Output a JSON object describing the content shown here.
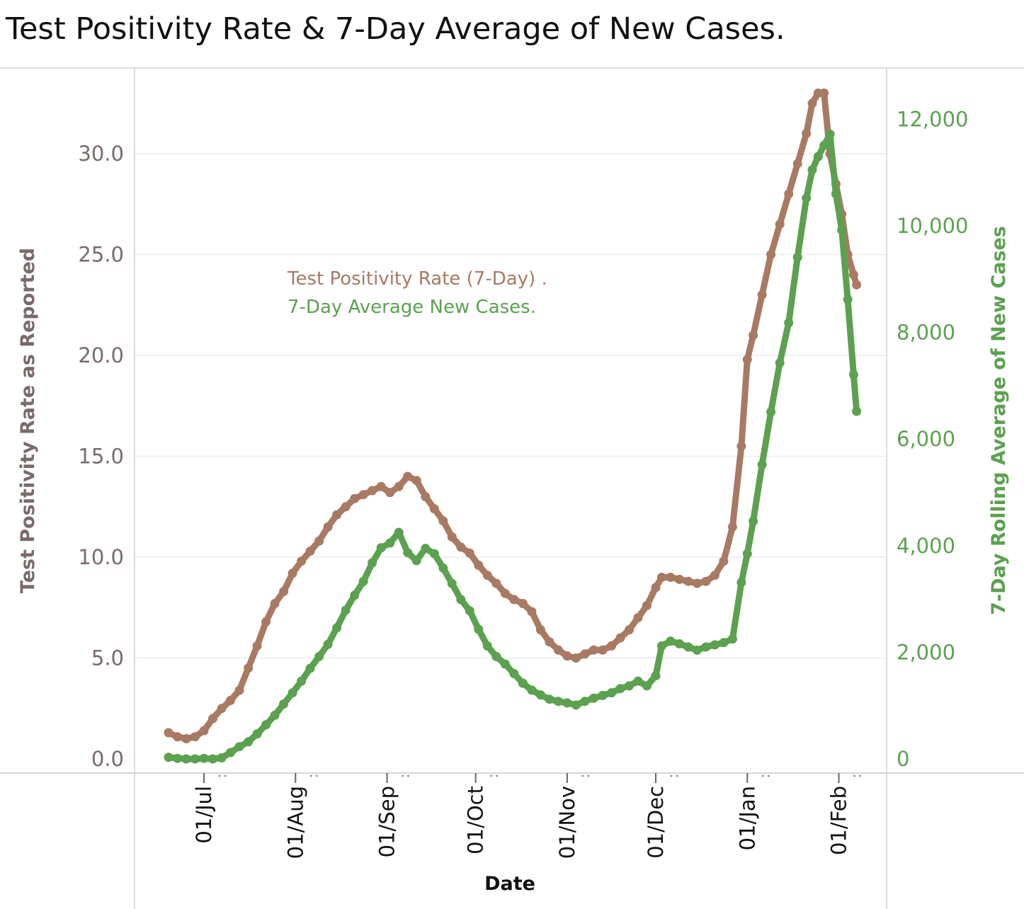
{
  "chart_data": {
    "type": "line",
    "title": "Test Positivity Rate & 7-Day Average of New Cases.",
    "xlabel": "Date",
    "x_ticks": [
      "01/Jul",
      "01/Aug",
      "01/Sep",
      "01/Oct",
      "01/Nov",
      "01/Dec",
      "01/Jan",
      "01/Feb"
    ],
    "y_left": {
      "label": "Test Positivity Rate as Reported",
      "ticks": [
        "0.0",
        "5.0",
        "10.0",
        "15.0",
        "20.0",
        "25.0",
        "30.0"
      ],
      "range": [
        0,
        35
      ],
      "color": "#7a6a6a"
    },
    "y_right": {
      "label": "7-Day Rolling  Average of New Cases",
      "ticks": [
        "0",
        "2,000",
        "4,000",
        "6,000",
        "8,000",
        "10,000",
        "12,000"
      ],
      "range": [
        0,
        13000
      ],
      "color": "#5ba14f"
    },
    "grid": true,
    "legend_position": "upper-left, inside plot",
    "series": [
      {
        "name": "Test Positivity Rate  (7-Day) .",
        "axis": "left",
        "color": "#a87a63",
        "points": [
          [
            "2020-06-19",
            1.3
          ],
          [
            "2020-06-22",
            1.1
          ],
          [
            "2020-06-25",
            1.0
          ],
          [
            "2020-06-28",
            1.1
          ],
          [
            "2020-07-01",
            1.4
          ],
          [
            "2020-07-04",
            2.0
          ],
          [
            "2020-07-07",
            2.5
          ],
          [
            "2020-07-10",
            2.9
          ],
          [
            "2020-07-13",
            3.4
          ],
          [
            "2020-07-16",
            4.5
          ],
          [
            "2020-07-19",
            5.6
          ],
          [
            "2020-07-22",
            6.8
          ],
          [
            "2020-07-25",
            7.7
          ],
          [
            "2020-07-28",
            8.3
          ],
          [
            "2020-07-31",
            9.2
          ],
          [
            "2020-08-03",
            9.8
          ],
          [
            "2020-08-06",
            10.3
          ],
          [
            "2020-08-09",
            10.8
          ],
          [
            "2020-08-12",
            11.5
          ],
          [
            "2020-08-15",
            12.1
          ],
          [
            "2020-08-18",
            12.5
          ],
          [
            "2020-08-21",
            12.9
          ],
          [
            "2020-08-24",
            13.1
          ],
          [
            "2020-08-27",
            13.3
          ],
          [
            "2020-08-30",
            13.5
          ],
          [
            "2020-09-02",
            13.2
          ],
          [
            "2020-09-05",
            13.5
          ],
          [
            "2020-09-08",
            14.0
          ],
          [
            "2020-09-11",
            13.8
          ],
          [
            "2020-09-14",
            13.0
          ],
          [
            "2020-09-17",
            12.4
          ],
          [
            "2020-09-20",
            11.8
          ],
          [
            "2020-09-23",
            11.0
          ],
          [
            "2020-09-26",
            10.5
          ],
          [
            "2020-09-29",
            10.2
          ],
          [
            "2020-10-02",
            9.6
          ],
          [
            "2020-10-05",
            9.1
          ],
          [
            "2020-10-08",
            8.7
          ],
          [
            "2020-10-11",
            8.2
          ],
          [
            "2020-10-14",
            7.9
          ],
          [
            "2020-10-17",
            7.7
          ],
          [
            "2020-10-20",
            7.3
          ],
          [
            "2020-10-23",
            6.4
          ],
          [
            "2020-10-26",
            5.8
          ],
          [
            "2020-10-29",
            5.4
          ],
          [
            "2020-11-01",
            5.1
          ],
          [
            "2020-11-04",
            5.0
          ],
          [
            "2020-11-07",
            5.2
          ],
          [
            "2020-11-10",
            5.4
          ],
          [
            "2020-11-13",
            5.4
          ],
          [
            "2020-11-16",
            5.6
          ],
          [
            "2020-11-19",
            6.0
          ],
          [
            "2020-11-22",
            6.4
          ],
          [
            "2020-11-25",
            7.0
          ],
          [
            "2020-11-28",
            7.6
          ],
          [
            "2020-12-01",
            8.5
          ],
          [
            "2020-12-03",
            9.0
          ],
          [
            "2020-12-06",
            9.0
          ],
          [
            "2020-12-09",
            8.9
          ],
          [
            "2020-12-12",
            8.8
          ],
          [
            "2020-12-15",
            8.7
          ],
          [
            "2020-12-18",
            8.8
          ],
          [
            "2020-12-21",
            9.1
          ],
          [
            "2020-12-24",
            9.8
          ],
          [
            "2020-12-27",
            11.5
          ],
          [
            "2020-12-30",
            15.5
          ],
          [
            "2021-01-01",
            19.8
          ],
          [
            "2021-01-03",
            21.0
          ],
          [
            "2021-01-06",
            23.0
          ],
          [
            "2021-01-09",
            25.0
          ],
          [
            "2021-01-12",
            26.5
          ],
          [
            "2021-01-15",
            28.0
          ],
          [
            "2021-01-18",
            29.5
          ],
          [
            "2021-01-21",
            31.0
          ],
          [
            "2021-01-23",
            32.5
          ],
          [
            "2021-01-25",
            33.0
          ],
          [
            "2021-01-27",
            33.0
          ],
          [
            "2021-01-29",
            30.0
          ],
          [
            "2021-01-31",
            28.5
          ],
          [
            "2021-02-02",
            27.0
          ],
          [
            "2021-02-04",
            25.0
          ],
          [
            "2021-02-06",
            24.0
          ],
          [
            "2021-02-07",
            23.5
          ]
        ]
      },
      {
        "name": "7-Day Average New Cases.",
        "axis": "right",
        "color": "#5ba14f",
        "points": [
          [
            "2020-06-19",
            30
          ],
          [
            "2020-06-22",
            10
          ],
          [
            "2020-06-25",
            0
          ],
          [
            "2020-06-28",
            0
          ],
          [
            "2020-07-01",
            10
          ],
          [
            "2020-07-04",
            0
          ],
          [
            "2020-07-07",
            20
          ],
          [
            "2020-07-10",
            120
          ],
          [
            "2020-07-13",
            230
          ],
          [
            "2020-07-16",
            320
          ],
          [
            "2020-07-19",
            470
          ],
          [
            "2020-07-22",
            640
          ],
          [
            "2020-07-25",
            820
          ],
          [
            "2020-07-28",
            1030
          ],
          [
            "2020-07-31",
            1240
          ],
          [
            "2020-08-03",
            1460
          ],
          [
            "2020-08-06",
            1700
          ],
          [
            "2020-08-09",
            1920
          ],
          [
            "2020-08-12",
            2150
          ],
          [
            "2020-08-15",
            2460
          ],
          [
            "2020-08-18",
            2790
          ],
          [
            "2020-08-21",
            3070
          ],
          [
            "2020-08-24",
            3330
          ],
          [
            "2020-08-27",
            3680
          ],
          [
            "2020-08-30",
            3960
          ],
          [
            "2020-09-02",
            4050
          ],
          [
            "2020-09-05",
            4250
          ],
          [
            "2020-09-08",
            3870
          ],
          [
            "2020-09-11",
            3720
          ],
          [
            "2020-09-14",
            3950
          ],
          [
            "2020-09-17",
            3850
          ],
          [
            "2020-09-20",
            3580
          ],
          [
            "2020-09-23",
            3290
          ],
          [
            "2020-09-26",
            2990
          ],
          [
            "2020-09-29",
            2780
          ],
          [
            "2020-10-02",
            2430
          ],
          [
            "2020-10-05",
            2120
          ],
          [
            "2020-10-08",
            1920
          ],
          [
            "2020-10-11",
            1780
          ],
          [
            "2020-10-14",
            1600
          ],
          [
            "2020-10-17",
            1420
          ],
          [
            "2020-10-20",
            1290
          ],
          [
            "2020-10-23",
            1200
          ],
          [
            "2020-10-26",
            1120
          ],
          [
            "2020-10-29",
            1080
          ],
          [
            "2020-11-01",
            1050
          ],
          [
            "2020-11-04",
            1010
          ],
          [
            "2020-11-07",
            1080
          ],
          [
            "2020-11-10",
            1140
          ],
          [
            "2020-11-13",
            1190
          ],
          [
            "2020-11-16",
            1240
          ],
          [
            "2020-11-19",
            1320
          ],
          [
            "2020-11-22",
            1370
          ],
          [
            "2020-11-25",
            1460
          ],
          [
            "2020-11-28",
            1370
          ],
          [
            "2020-12-01",
            1560
          ],
          [
            "2020-12-03",
            2120
          ],
          [
            "2020-12-06",
            2210
          ],
          [
            "2020-12-09",
            2160
          ],
          [
            "2020-12-12",
            2100
          ],
          [
            "2020-12-15",
            2040
          ],
          [
            "2020-12-18",
            2100
          ],
          [
            "2020-12-21",
            2140
          ],
          [
            "2020-12-24",
            2180
          ],
          [
            "2020-12-27",
            2250
          ],
          [
            "2020-12-30",
            3310
          ],
          [
            "2021-01-01",
            3850
          ],
          [
            "2021-01-03",
            4460
          ],
          [
            "2021-01-06",
            5520
          ],
          [
            "2021-01-09",
            6510
          ],
          [
            "2021-01-12",
            7430
          ],
          [
            "2021-01-15",
            8180
          ],
          [
            "2021-01-18",
            9410
          ],
          [
            "2021-01-21",
            10520
          ],
          [
            "2021-01-23",
            11050
          ],
          [
            "2021-01-25",
            11300
          ],
          [
            "2021-01-27",
            11510
          ],
          [
            "2021-01-29",
            11720
          ],
          [
            "2021-01-31",
            10600
          ],
          [
            "2021-02-02",
            9920
          ],
          [
            "2021-02-04",
            8620
          ],
          [
            "2021-02-06",
            7210
          ],
          [
            "2021-02-07",
            6520
          ]
        ]
      }
    ]
  }
}
